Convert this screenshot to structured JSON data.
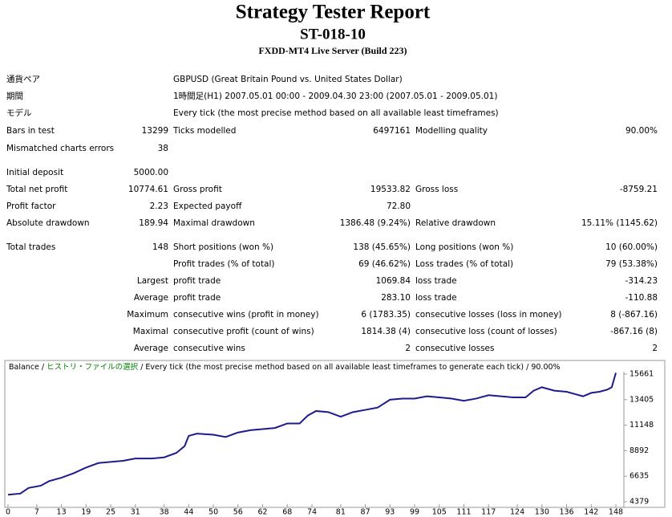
{
  "header": {
    "title": "Strategy Tester Report",
    "subtitle": "ST-018-10",
    "server": "FXDD-MT4 Live Server (Build 223)"
  },
  "table": {
    "rows": [
      [
        "通貨ペア",
        null,
        "GBPUSD (Great Britain Pound vs. United States Dollar)",
        null,
        null,
        null
      ],
      [
        "期間",
        null,
        "1時間足(H1) 2007.05.01 00:00 - 2009.04.30 23:00 (2007.05.01 - 2009.05.01)",
        null,
        null,
        null
      ],
      [
        "モデル",
        null,
        "Every tick (the most precise method based on all available least timeframes)",
        null,
        null,
        null
      ],
      [
        "Bars in test",
        "13299",
        "Ticks modelled",
        "6497161",
        "Modelling quality",
        "90.00%"
      ],
      [
        "Mismatched charts errors",
        "38",
        null,
        null,
        null,
        null
      ],
      [
        "Initial deposit",
        "5000.00",
        null,
        null,
        null,
        null
      ],
      [
        "Total net profit",
        "10774.61",
        "Gross profit",
        "19533.82",
        "Gross loss",
        "-8759.21"
      ],
      [
        "Profit factor",
        "2.23",
        "Expected payoff",
        "72.80",
        null,
        null
      ],
      [
        "Absolute drawdown",
        "189.94",
        "Maximal drawdown",
        "1386.48 (9.24%)",
        "Relative drawdown",
        "15.11% (1145.62)"
      ],
      [
        "Total trades",
        "148",
        "Short positions (won %)",
        "138 (45.65%)",
        "Long positions (won %)",
        "10 (60.00%)"
      ],
      [
        null,
        null,
        "Profit trades (% of total)",
        "69 (46.62%)",
        "Loss trades (% of total)",
        "79 (53.38%)"
      ],
      [
        null,
        "Largest",
        "profit trade",
        "1069.84",
        "loss trade",
        "-314.23"
      ],
      [
        null,
        "Average",
        "profit trade",
        "283.10",
        "loss trade",
        "-110.88"
      ],
      [
        null,
        "Maximum",
        "consecutive wins (profit in money)",
        "6 (1783.35)",
        "consecutive losses (loss in money)",
        "8 (-867.16)"
      ],
      [
        null,
        "Maximal",
        "consecutive profit (count of wins)",
        "1814.38 (4)",
        "consecutive loss (count of losses)",
        "-867.16 (8)"
      ],
      [
        null,
        "Average",
        "consecutive wins",
        "2",
        "consecutive losses",
        "2"
      ]
    ]
  },
  "chart_data": {
    "type": "line",
    "notes": [
      "/",
      "ヒストリ・ファイルの選択",
      "/ Every tick (the most precise method based on all available least timeframes to generate each tick) / 90.00%"
    ],
    "x": [
      0,
      3,
      5,
      8,
      10,
      13,
      16,
      19,
      22,
      25,
      28,
      31,
      35,
      38,
      41,
      43,
      44,
      46,
      50,
      53,
      56,
      59,
      62,
      65,
      68,
      71,
      73,
      75,
      78,
      81,
      84,
      87,
      90,
      93,
      96,
      99,
      102,
      105,
      108,
      111,
      114,
      117,
      120,
      123,
      126,
      128,
      130,
      133,
      136,
      138,
      140,
      142,
      144,
      146,
      147,
      148
    ],
    "series": [
      {
        "name": "Balance",
        "color": "#1c1c8c",
        "values": [
          5000,
          5100,
          5600,
          5800,
          6200,
          6500,
          6900,
          7400,
          7800,
          7900,
          8000,
          8200,
          8200,
          8300,
          8700,
          9300,
          10200,
          10400,
          10300,
          10100,
          10500,
          10700,
          10800,
          10900,
          11300,
          11300,
          12000,
          12400,
          12300,
          11900,
          12300,
          12500,
          12700,
          13400,
          13500,
          13500,
          13700,
          13600,
          13500,
          13300,
          13500,
          13800,
          13700,
          13600,
          13600,
          14200,
          14500,
          14200,
          14100,
          13900,
          13700,
          14000,
          14100,
          14300,
          14500,
          15775
        ]
      }
    ],
    "xlim": [
      0,
      148
    ],
    "xticks": [
      0,
      7,
      13,
      19,
      25,
      31,
      38,
      44,
      50,
      56,
      62,
      68,
      74,
      81,
      87,
      93,
      99,
      105,
      111,
      117,
      124,
      130,
      136,
      142,
      148
    ],
    "ylim": [
      4379,
      15661
    ],
    "yticks": [
      4379,
      6635,
      8892,
      11148,
      13405,
      15661
    ],
    "grid": false
  }
}
